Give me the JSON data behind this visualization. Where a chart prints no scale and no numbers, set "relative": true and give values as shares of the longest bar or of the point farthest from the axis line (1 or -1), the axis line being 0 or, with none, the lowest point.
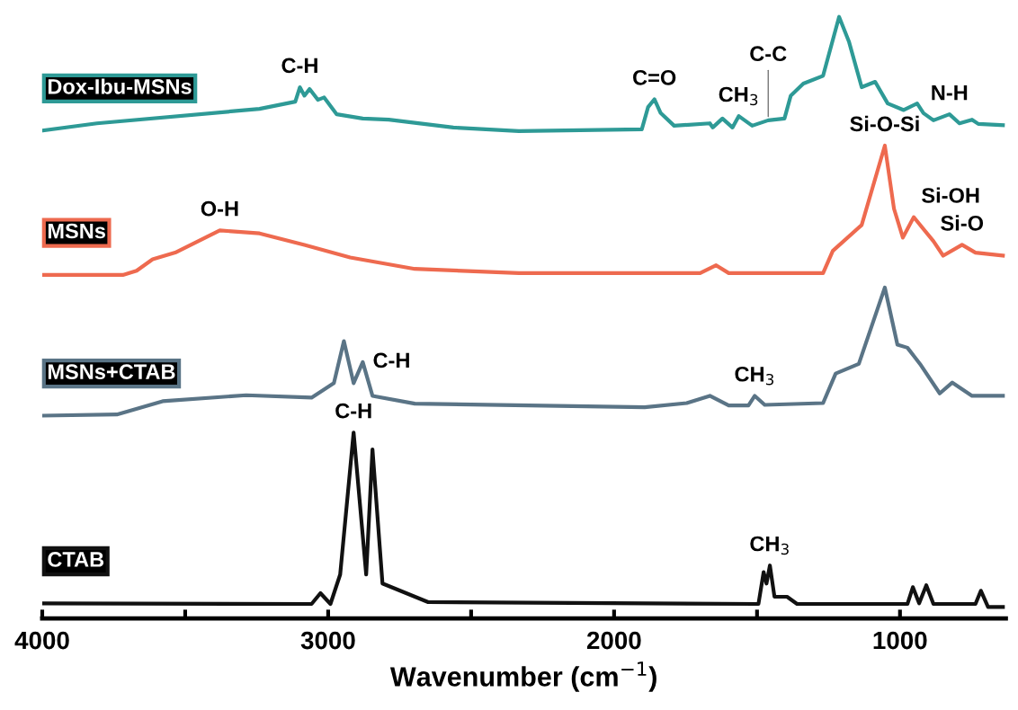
{
  "chart_data": {
    "type": "line",
    "relative": true,
    "xlabel": "Wavenumber (cm$^{−1}$)",
    "xlim": [
      4000,
      630
    ],
    "xticks": [
      4000,
      {
        "value": 3500,
        "label": null
      },
      3000,
      {
        "value": 2500,
        "label": null
      },
      2000,
      {
        "value": 1500,
        "label": null
      },
      1000
    ],
    "tick_labels": "x",
    "grid": false,
    "legend": false,
    "marker": "none",
    "line_style": "solid",
    "series": [
      {
        "name": "Dox-Ibu-MSNs",
        "color": "#2e9a96",
        "x": [
          4000,
          3809,
          3240,
          3115,
          3099,
          3083,
          3065,
          3036,
          3014,
          2970,
          2879,
          2788,
          2562,
          2333,
          1903,
          1881,
          1859,
          1837,
          1790,
          1665,
          1655,
          1621,
          1586,
          1564,
          1517,
          1461,
          1404,
          1382,
          1338,
          1269,
          1213,
          1178,
          1134,
          1087,
          1043,
          987,
          940,
          918,
          883,
          827,
          792,
          748,
          726,
          640
        ],
        "values": [
          0.811,
          0.823,
          0.847,
          0.859,
          0.883,
          0.869,
          0.88,
          0.862,
          0.866,
          0.838,
          0.831,
          0.829,
          0.816,
          0.81,
          0.813,
          0.85,
          0.863,
          0.84,
          0.819,
          0.823,
          0.816,
          0.831,
          0.816,
          0.835,
          0.819,
          0.828,
          0.831,
          0.869,
          0.889,
          0.902,
          1.0,
          0.958,
          0.883,
          0.892,
          0.856,
          0.845,
          0.856,
          0.84,
          0.828,
          0.838,
          0.823,
          0.829,
          0.822,
          0.82
        ]
      },
      {
        "name": "MSNs",
        "color": "#ee6a4f",
        "x": [
          4000,
          3718,
          3670,
          3614,
          3535,
          3379,
          3240,
          3083,
          2923,
          2697,
          2333,
          1699,
          1643,
          1599,
          1269,
          1235,
          1134,
          1053,
          1021,
          990,
          952,
          883,
          849,
          783,
          736,
          640
        ],
        "values": [
          0.571,
          0.571,
          0.578,
          0.597,
          0.608,
          0.645,
          0.64,
          0.621,
          0.6,
          0.581,
          0.574,
          0.574,
          0.587,
          0.574,
          0.574,
          0.611,
          0.654,
          0.786,
          0.681,
          0.633,
          0.667,
          0.627,
          0.603,
          0.621,
          0.608,
          0.603
        ]
      },
      {
        "name": "MSNs+CTAB",
        "color": "#5a7486",
        "x": [
          4000,
          3739,
          3579,
          3287,
          3058,
          2980,
          2945,
          2911,
          2879,
          2845,
          2697,
          1893,
          1746,
          1665,
          1599,
          1530,
          1508,
          1473,
          1269,
          1225,
          1144,
          1053,
          1009,
          974,
          930,
          861,
          817,
          748,
          640
        ],
        "values": [
          0.337,
          0.339,
          0.361,
          0.371,
          0.367,
          0.391,
          0.461,
          0.391,
          0.426,
          0.37,
          0.357,
          0.351,
          0.358,
          0.37,
          0.354,
          0.354,
          0.37,
          0.355,
          0.358,
          0.407,
          0.423,
          0.55,
          0.455,
          0.45,
          0.423,
          0.374,
          0.392,
          0.37,
          0.37
        ]
      },
      {
        "name": "CTAB",
        "color": "#111111",
        "x": [
          4000,
          3058,
          3027,
          2992,
          2958,
          2911,
          2867,
          2845,
          2810,
          2650,
          1495,
          1477,
          1467,
          1455,
          1439,
          1395,
          1360,
          974,
          955,
          933,
          908,
          883,
          736,
          717,
          692,
          640
        ],
        "values": [
          0.025,
          0.024,
          0.042,
          0.024,
          0.073,
          0.309,
          0.073,
          0.281,
          0.058,
          0.027,
          0.024,
          0.077,
          0.058,
          0.088,
          0.036,
          0.036,
          0.024,
          0.024,
          0.052,
          0.025,
          0.055,
          0.024,
          0.024,
          0.046,
          0.019,
          0.019
        ]
      }
    ],
    "annotations": [
      {
        "text": "C-H",
        "x": 3099,
        "y": 0.883
      },
      {
        "text": "C=O",
        "x": 1859,
        "y": 0.863
      },
      {
        "text": "CH$_{3}$",
        "x": 1564,
        "y": 0.835
      },
      {
        "text": "C-C",
        "x": 1461,
        "y": 0.828
      },
      {
        "text": "N-H",
        "x": 827,
        "y": 0.838
      },
      {
        "text": "Si-O-Si",
        "x": 1053,
        "y": 0.786
      },
      {
        "text": "Si-OH",
        "x": 952,
        "y": 0.667
      },
      {
        "text": "Si-O",
        "x": 783,
        "y": 0.621
      },
      {
        "text": "O-H",
        "x": 3379,
        "y": 0.645
      },
      {
        "text": "C-H",
        "x": 2879,
        "y": 0.426
      },
      {
        "text": "CH$_{3}$",
        "x": 1508,
        "y": 0.37
      },
      {
        "text": "C-H",
        "x": 2911,
        "y": 0.309
      },
      {
        "text": "CH$_{3}$",
        "x": 1455,
        "y": 0.088
      }
    ]
  }
}
